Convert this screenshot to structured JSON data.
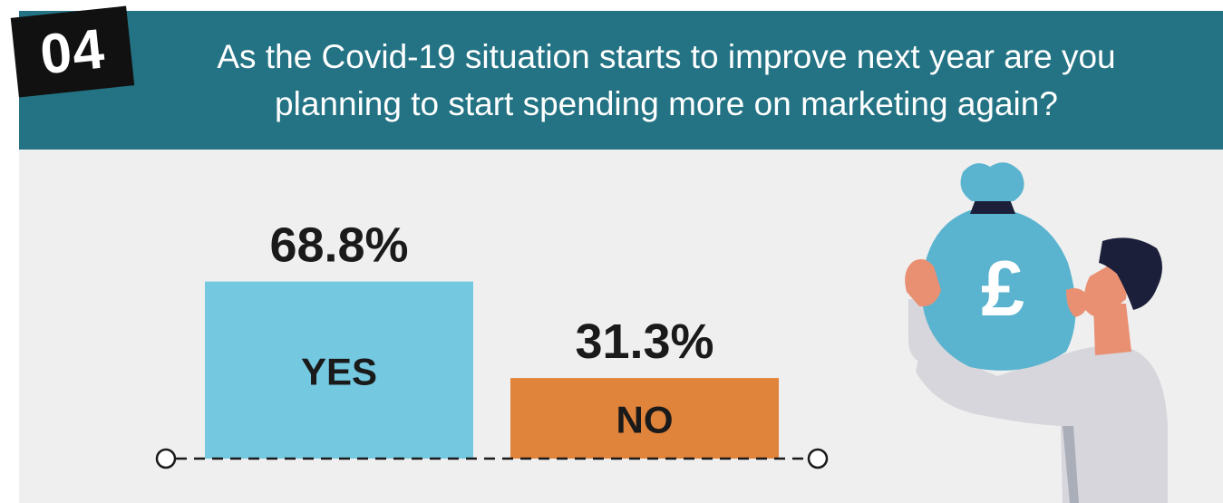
{
  "badge": {
    "number": "04"
  },
  "header": {
    "question": "As the Covid-19 situation starts to improve next year are you planning to start spending more on marketing again?"
  },
  "colors": {
    "header_bg": "#237384",
    "yes": "#74c8e0",
    "no": "#e0833b",
    "panel_bg": "#efefef"
  },
  "illustration": {
    "bag_symbol": "£"
  },
  "chart_data": {
    "type": "bar",
    "categories": [
      "YES",
      "NO"
    ],
    "values": [
      68.8,
      31.3
    ],
    "value_labels": [
      "68.8%",
      "31.3%"
    ],
    "unit": "%",
    "title": "",
    "xlabel": "",
    "ylabel": "",
    "ylim": [
      0,
      72
    ],
    "grid": false,
    "legend": "none"
  }
}
